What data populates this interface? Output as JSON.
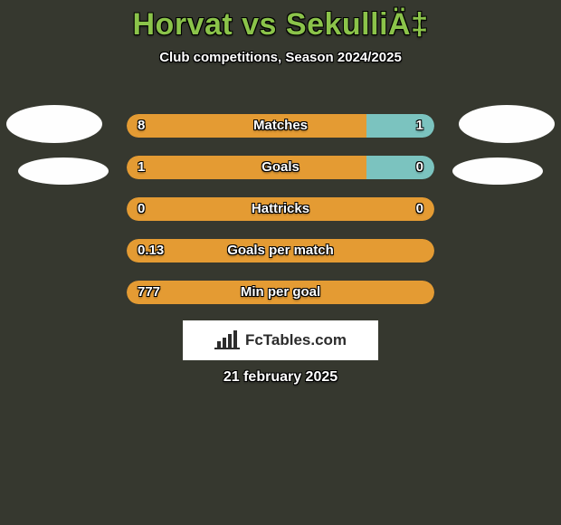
{
  "background_color": "#36382f",
  "title": {
    "text": "Horvat vs SekulliÄ‡",
    "color": "#8bc34a",
    "fontsize": 34
  },
  "subtitle": {
    "text": "Club competitions, Season 2024/2025",
    "color": "#ffffff",
    "fontsize": 15
  },
  "date": {
    "text": "21 february 2025",
    "color": "#ffffff"
  },
  "brand": {
    "text": "FcTables.com",
    "icon_color": "#2c2c2c"
  },
  "colors": {
    "left_bar": "#e49b33",
    "right_bar": "#7bc3bf",
    "neutral_bar": "#e49b33",
    "bar_text": "#ffffff"
  },
  "avatars": {
    "color": "#fefefe"
  },
  "rows": [
    {
      "label": "Matches",
      "left": "8",
      "right": "1",
      "left_pct": 78,
      "right_pct": 22
    },
    {
      "label": "Goals",
      "left": "1",
      "right": "0",
      "left_pct": 78,
      "right_pct": 22
    },
    {
      "label": "Hattricks",
      "left": "0",
      "right": "0",
      "left_pct": 0,
      "right_pct": 0,
      "neutral": true
    },
    {
      "label": "Goals per match",
      "left": "0.13",
      "right": "",
      "left_pct": 100,
      "right_pct": 0,
      "single": true
    },
    {
      "label": "Min per goal",
      "left": "777",
      "right": "",
      "left_pct": 100,
      "right_pct": 0,
      "single": true
    }
  ]
}
